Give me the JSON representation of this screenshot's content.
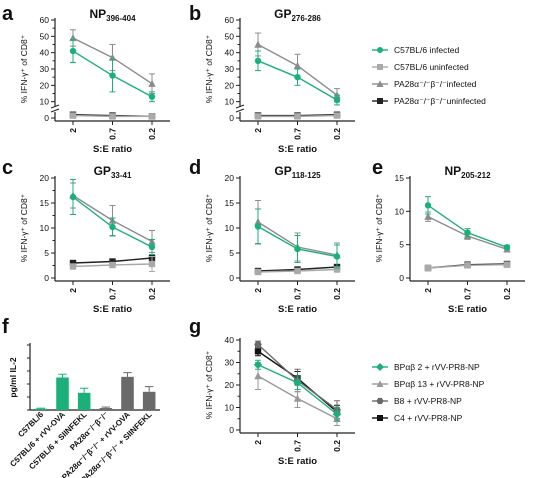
{
  "colors": {
    "green": "#1bb07a",
    "light_gray": "#a9a9a9",
    "mid_gray": "#8c8c8c",
    "dark": "#222222",
    "dark_gray": "#6a6a6a",
    "c4_black": "#111111"
  },
  "shared": {
    "x_ticks": [
      "2",
      "0.7",
      "0.2"
    ],
    "xlabel": "S:E ratio",
    "ylabel_line": "% IFN-γ⁺ of CD8⁺",
    "ylabel_bar": "pg/ml IL-2"
  },
  "legend_top": [
    {
      "label": "C57BL/6 infected",
      "color": "#1bb07a",
      "marker": "circle"
    },
    {
      "label": "C57BL/6 uninfected",
      "color": "#a9a9a9",
      "marker": "square"
    },
    {
      "label": "PA28α⁻/⁻β⁻/⁻infected",
      "color": "#8c8c8c",
      "marker": "triangle"
    },
    {
      "label": "PA28α⁻/⁻β⁻/⁻uninfected",
      "color": "#222222",
      "marker": "square"
    }
  ],
  "legend_g": [
    {
      "label": "BPαβ 2 + rVV-PR8-NP",
      "color": "#1bb07a",
      "marker": "diamond"
    },
    {
      "label": "BPαβ 13 + rVV-PR8-NP",
      "color": "#999999",
      "marker": "triangle"
    },
    {
      "label": "B8 + rVV-PR8-NP",
      "color": "#6a6a6a",
      "marker": "hexagon"
    },
    {
      "label": "C4 + rVV-PR8-NP",
      "color": "#111111",
      "marker": "square"
    }
  ],
  "chart_data": [
    {
      "type": "line",
      "panel": "a",
      "title_main": "NP",
      "title_sub": "396-404",
      "x": [
        "2",
        "0.7",
        "0.2"
      ],
      "ylim": [
        0,
        60
      ],
      "yticks": [
        0,
        5,
        10,
        15,
        20,
        25,
        30,
        35,
        40,
        45,
        50,
        55,
        60
      ],
      "axis_break": true,
      "ylabel": "% IFN-γ⁺ of CD8⁺",
      "series": [
        {
          "name": "C57BL/6 infected",
          "values": [
            41,
            26,
            13
          ],
          "err": [
            7,
            10,
            3
          ]
        },
        {
          "name": "C57BL/6 uninfected",
          "values": [
            1.5,
            1,
            1
          ],
          "err": [
            0.5,
            0.5,
            0.5
          ]
        },
        {
          "name": "PA28α⁻/⁻β⁻/⁻infected",
          "values": [
            49,
            37,
            21
          ],
          "err": [
            5,
            8,
            6
          ]
        },
        {
          "name": "PA28α⁻/⁻β⁻/⁻uninfected",
          "values": [
            2,
            1.5,
            1
          ],
          "err": [
            0.5,
            0.5,
            0.5
          ]
        }
      ]
    },
    {
      "type": "line",
      "panel": "b",
      "title_main": "GP",
      "title_sub": "276-286",
      "x": [
        "2",
        "0.7",
        "0.2"
      ],
      "ylim": [
        0,
        60
      ],
      "yticks": [
        0,
        5,
        10,
        15,
        20,
        25,
        30,
        35,
        40,
        45,
        50,
        55,
        60
      ],
      "axis_break": true,
      "ylabel": "% IFN-γ⁺ of CD8⁺",
      "series": [
        {
          "name": "C57BL/6 infected",
          "values": [
            35,
            25,
            11
          ],
          "err": [
            6,
            5,
            3
          ]
        },
        {
          "name": "C57BL/6 uninfected",
          "values": [
            1,
            1,
            1.5
          ],
          "err": [
            0.5,
            0.5,
            0.5
          ]
        },
        {
          "name": "PA28α⁻/⁻β⁻/⁻infected",
          "values": [
            45,
            32,
            14
          ],
          "err": [
            7,
            7,
            4
          ]
        },
        {
          "name": "PA28α⁻/⁻β⁻/⁻uninfected",
          "values": [
            1.5,
            1.5,
            2
          ],
          "err": [
            0.5,
            0.5,
            0.5
          ]
        }
      ]
    },
    {
      "type": "line",
      "panel": "c",
      "title_main": "GP",
      "title_sub": "33-41",
      "x": [
        "2",
        "0.7",
        "0.2"
      ],
      "ylim": [
        0,
        20
      ],
      "yticks": [
        0,
        2.5,
        5,
        7.5,
        10,
        12.5,
        15,
        17.5,
        20
      ],
      "ylabel": "% IFN-γ⁺ of CD8⁺",
      "series": [
        {
          "name": "C57BL/6 infected",
          "values": [
            16.2,
            10.2,
            6.2
          ],
          "err": [
            3.5,
            1.8,
            1.5
          ]
        },
        {
          "name": "C57BL/6 uninfected",
          "values": [
            2.3,
            2.6,
            2.8
          ],
          "err": [
            0.4,
            0.4,
            1.5
          ]
        },
        {
          "name": "PA28α⁻/⁻β⁻/⁻infected",
          "values": [
            16.5,
            11.5,
            7.3
          ],
          "err": [
            2.5,
            3,
            2.2
          ]
        },
        {
          "name": "PA28α⁻/⁻β⁻/⁻uninfected",
          "values": [
            3,
            3.3,
            4
          ],
          "err": [
            0.4,
            0.5,
            0.6
          ]
        }
      ]
    },
    {
      "type": "line",
      "panel": "d",
      "title_main": "GP",
      "title_sub": "118-125",
      "x": [
        "2",
        "0.7",
        "0.2"
      ],
      "ylim": [
        0,
        20
      ],
      "yticks": [
        0,
        5,
        10,
        15,
        20
      ],
      "ylabel": "% IFN-γ⁺ of CD8⁺",
      "series": [
        {
          "name": "C57BL/6 infected",
          "values": [
            10.3,
            5.8,
            4.3
          ],
          "err": [
            3.5,
            2.7,
            2.3
          ]
        },
        {
          "name": "C57BL/6 uninfected",
          "values": [
            1.2,
            1.4,
            1.7
          ],
          "err": [
            0.3,
            0.3,
            0.4
          ]
        },
        {
          "name": "PA28α⁻/⁻β⁻/⁻infected",
          "values": [
            11.2,
            6.2,
            4.6
          ],
          "err": [
            4.3,
            2.8,
            2.4
          ]
        },
        {
          "name": "PA28α⁻/⁻β⁻/⁻uninfected",
          "values": [
            1.4,
            1.7,
            2.2
          ],
          "err": [
            0.3,
            0.3,
            0.3
          ]
        }
      ]
    },
    {
      "type": "line",
      "panel": "e",
      "title_main": "NP",
      "title_sub": "205-212",
      "x": [
        "2",
        "0.7",
        "0.2"
      ],
      "ylim": [
        0,
        15
      ],
      "yticks": [
        0,
        5,
        10,
        15
      ],
      "ylabel": "% IFN-γ⁺ of CD8⁺",
      "series": [
        {
          "name": "C57BL/6 infected",
          "values": [
            10.9,
            6.8,
            4.6
          ],
          "err": [
            1.3,
            0.6,
            0.3
          ]
        },
        {
          "name": "C57BL/6 uninfected",
          "values": [
            1.5,
            1.9,
            2
          ],
          "err": [
            0.2,
            0.2,
            0.2
          ]
        },
        {
          "name": "PA28α⁻/⁻β⁻/⁻infected",
          "values": [
            9.2,
            6.3,
            4.3
          ],
          "err": [
            0.7,
            0.5,
            0.3
          ]
        },
        {
          "name": "PA28α⁻/⁻β⁻/⁻uninfected",
          "values": [
            1.5,
            2,
            2.1
          ],
          "err": [
            0.2,
            0.2,
            0.2
          ]
        }
      ]
    },
    {
      "type": "bar",
      "panel": "f",
      "ylabel": "pg/ml IL-2",
      "ylim": [
        0,
        1000
      ],
      "yticks": [
        0,
        200,
        400,
        600,
        800,
        1000
      ],
      "categories": [
        "C57BL/6",
        "C57BL/6 + rVV-OVA",
        "C57BL/6 + SIINFEKL",
        "PA28α⁻/⁻β⁻/⁻",
        "PA28α⁻/⁻β⁻/⁻ + rVV-OVA",
        "PA28α⁻/⁻β⁻/⁻ + SIINFEKL"
      ],
      "values": [
        20,
        500,
        265,
        30,
        510,
        280
      ],
      "err": [
        8,
        50,
        70,
        15,
        65,
        80
      ],
      "bar_colors": [
        "#1bb07a",
        "#1bb07a",
        "#1bb07a",
        "#6a6a6a",
        "#6a6a6a",
        "#6a6a6a"
      ]
    },
    {
      "type": "line",
      "panel": "g",
      "x": [
        "2",
        "0.7",
        "0.2"
      ],
      "ylim": [
        0,
        40
      ],
      "yticks": [
        0,
        5,
        10,
        15,
        20,
        25,
        30,
        35,
        40
      ],
      "ylabel": "% IFN-γ⁺ of CD8⁺",
      "xlabel": "S:E ratio",
      "series": [
        {
          "name": "BPαβ 2 + rVV-PR8-NP",
          "values": [
            29,
            21,
            7
          ],
          "err": [
            2,
            3,
            3
          ]
        },
        {
          "name": "BPαβ 13 + rVV-PR8-NP",
          "values": [
            24,
            14,
            5
          ],
          "err": [
            6,
            4,
            3
          ]
        },
        {
          "name": "B8 + rVV-PR8-NP",
          "values": [
            38,
            22,
            9
          ],
          "err": [
            1.5,
            5,
            4
          ]
        },
        {
          "name": "C4 + rVV-PR8-NP",
          "values": [
            35,
            23,
            8
          ],
          "err": [
            2,
            3,
            3
          ]
        }
      ]
    }
  ]
}
